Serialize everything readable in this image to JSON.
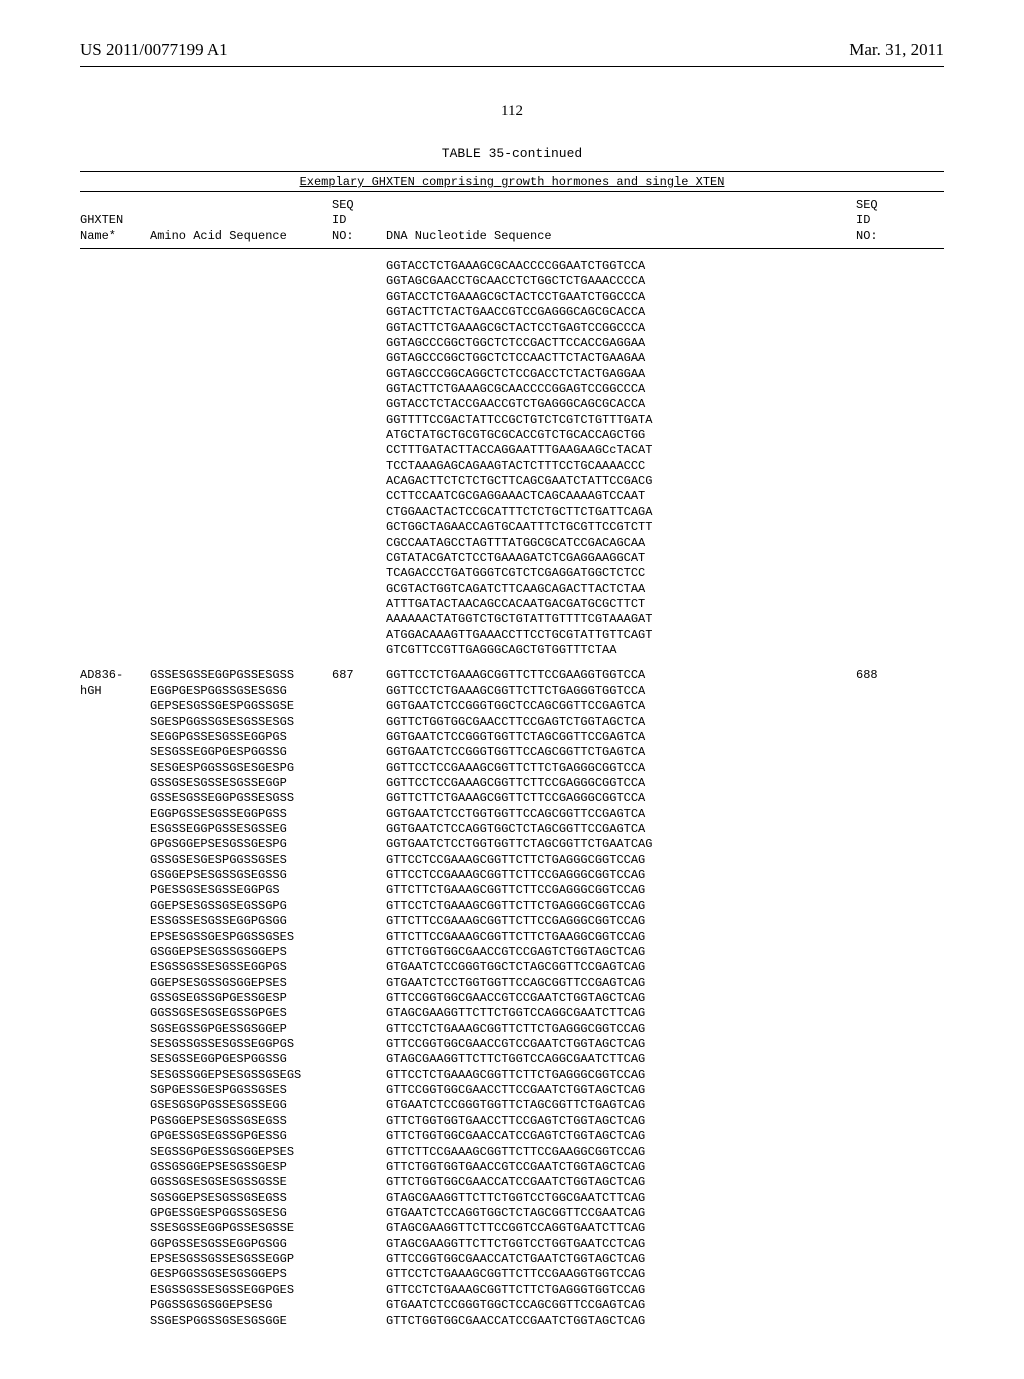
{
  "header": {
    "pub_number": "US 2011/0077199 A1",
    "pub_date": "Mar. 31, 2011"
  },
  "page_number": "112",
  "table": {
    "title": "TABLE 35-continued",
    "subtitle": "Exemplary GHXTEN comprising growth hormones and single XTEN",
    "columns": {
      "c1": "GHXTEN\nName*",
      "c2": "Amino Acid Sequence",
      "c3": "SEQ\nID\nNO:",
      "c4": "DNA Nucleotide Sequence",
      "c5": "SEQ\nID\nNO:"
    },
    "rows": [
      {
        "name": "",
        "aa": "",
        "seq_id_aa": "",
        "dna": "GGTACCTCTGAAAGCGCAACCCCGGAATCTGGTCCA\nGGTAGCGAACCTGCAACCTCTGGCTCTGAAACCCCA\nGGTACCTCTGAAAGCGCTACTCCTGAATCTGGCCCA\nGGTACTTCTACTGAACCGTCCGAGGGCAGCGCACCA\nGGTACTTCTGAAAGCGCTACTCCTGAGTCCGGCCCA\nGGTAGCCCGGCTGGCTCTCCGACTTCCACCGAGGAA\nGGTAGCCCGGCTGGCTCTCCAACTTCTACTGAAGAA\nGGTAGCCCGGCAGGCTCTCCGACCTCTACTGAGGAA\nGGTACTTCTGAAAGCGCAACCCCGGAGTCCGGCCCA\nGGTACCTCTACCGAACCGTCTGAGGGCAGCGCACCA\nGGTTTTCCGACTATTCCGCTGTCTCGTCTGTTTGATA\nATGCTATGCTGCGTGCGCACCGTCTGCACCAGCTGG\nCCTTTGATACTTACCAGGAATTTGAAGAAGCcTACAT\nTCCTAAAGAGCAGAAGTACTCTTTCCTGCAAAACCC\nACAGACTTCTCTCTGCTTCAGCGAATCTATTCCGACG\nCCTTCCAATCGCGAGGAAACTCAGCAAAAGTCCAAT\nCTGGAACTACTCCGCATTTCTCTGCTTCTGATTCAGA\nGCTGGCTAGAACCAGTGCAATTTCTGCGTTCCGTCTT\nCGCCAATAGCCTAGTTTATGGCGCATCCGACAGCAA\nCGTATACGATCTCCTGAAAGATCTCGAGGAAGGCAT\nTCAGACCCTGATGGGTCGTCTCGAGGATGGCTCTCC\nGCGTACTGGTCAGATCTTCAAGCAGACTTACTCTAA\nATTTGATACTAACAGCCACAATGACGATGCGCTTCT\nAAAAAACTATGGTCTGCTGTATTGTTTTCGTAAAGAT\nATGGACAAAGTTGAAACCTTCCTGCGTATTGTTCAGT\nGTCGTTCCGTTGAGGGCAGCTGTGGTTTCTAA",
        "seq_id_dna": ""
      },
      {
        "name": "AD836-\nhGH",
        "aa": "GSSESGSSEGGPGSSESGSS\nEGGPGESPGGSSGSESGSG\nGEPSESGSSGESPGGSSGSE\nSGESPGGSSGSESGSSESGS\nSEGGPGSSESGSSEGGPGS\nSESGSSEGGPGESPGGSSG\nSESGESPGGSSGSESGESPG\nGSSGSESGSSESGSSEGGP\nGSSESGSSEGGPGSSESGSS\nEGGPGSSESGSSEGGPGSS\nESGSSEGGPGSSESGSSEG\nGPGSGGEPSESGSSGESPG\nGSSGSESGESPGGSSGSES\nGSGGEPSESGSSGSEGSSG\nPGESSGSESGSSEGGPGS\nGGEPSESGSSGSEGSSGPG\nESSGSSESGSSEGGPGSGG\nEPSESGSSGESPGGSSGSES\nGSGGEPSESGSSGSGGEPS\nESGSSGSSESGSSEGGPGS\nGGEPSESGSSGSGGEPSES\nGSSGSEGSSGPGESSGESP\nGGSSGSESGSEGSSGPGES\nSGSEGSSGPGESSGSGGEP\nSESGSSGSSESGSSEGGPGS\nSESGSSEGGPGESPGGSSG\nSESGSSGGEPSESGSSGSEGS\nSGPGESSGESPGGSSGSES\nGSESGSGPGSSESGSSEGG\nPGSGGEPSESGSSGSEGSS\nGPGESSGSEGSSGPGESSG\nSEGSSGPGESSGSGGEPSES\nGSSGSGGEPSESGSSGESP\nGGSSGSESGSESGSSGSSE\nSGSGGEPSESGSSGSEGSS\nGPGESSGESPGGSSGSESG\nSSESGSSEGGPGSSESGSSE\nGGPGSSESGSSEGGPGSGG\nEPSESGSSGSSESGSSEGGP\nGESPGGSSGSESGSGGEPS\nESGSSGSSESGSSEGGPGES\nPGGSSGSGSGGEPSESG\nSSGESPGGSSGSESGSGGE",
        "seq_id_aa": "687",
        "dna": "GGTTCCTCTGAAAGCGGTTCTTCCGAAGGTGGTCCA\nGGTTCCTCTGAAAGCGGTTCTTCTGAGGGTGGTCCA\nGGTGAATCTCCGGGTGGCTCCAGCGGTTCCGAGTCA\nGGTTCTGGTGGCGAACCTTCCGAGTCTGGTAGCTCA\nGGTGAATCTCCGGGTGGTTCTAGCGGTTCCGAGTCA\nGGTGAATCTCCGGGTGGTTCCAGCGGTTCTGAGTCA\nGGTTCCTCCGAAAGCGGTTCTTCTGAGGGCGGTCCA\nGGTTCCTCCGAAAGCGGTTCTTCCGAGGGCGGTCCA\nGGTTCTTCTGAAAGCGGTTCTTCCGAGGGCGGTCCA\nGGTGAATCTCCTGGTGGTTCCAGCGGTTCCGAGTCA\nGGTGAATCTCCAGGTGGCTCTAGCGGTTCCGAGTCA\nGGTGAATCTCCTGGTGGTTCTAGCGGTTCTGAATCAG\nGTTCCTCCGAAAGCGGTTCTTCTGAGGGCGGTCCAG\nGTTCCTCCGAAAGCGGTTCTTCCGAGGGCGGTCCAG\nGTTCTTCTGAAAGCGGTTCTTCCGAGGGCGGTCCAG\nGTTCCTCTGAAAGCGGTTCTTCTGAGGGCGGTCCAG\nGTTCTTCCGAAAGCGGTTCTTCCGAGGGCGGTCCAG\nGTTCTTCCGAAAGCGGTTCTTCTGAAGGCGGTCCAG\nGTTCTGGTGGCGAACCGTCCGAGTCTGGTAGCTCAG\nGTGAATCTCCGGGTGGCTCTAGCGGTTCCGAGTCAG\nGTGAATCTCCTGGTGGTTCCAGCGGTTCCGAGTCAG\nGTTCCGGTGGCGAACCGTCCGAATCTGGTAGCTCAG\nGTAGCGAAGGTTCTTCTGGTCCAGGCGAATCTTCAG\nGTTCCTCTGAAAGCGGTTCTTCTGAGGGCGGTCCAG\nGTTCCGGTGGCGAACCGTCCGAATCTGGTAGCTCAG\nGTAGCGAAGGTTCTTCTGGTCCAGGCGAATCTTCAG\nGTTCCTCTGAAAGCGGTTCTTCTGAGGGCGGTCCAG\nGTTCCGGTGGCGAACCTTCCGAATCTGGTAGCTCAG\nGTGAATCTCCGGGTGGTTCTAGCGGTTCTGAGTCAG\nGTTCTGGTGGTGAACCTTCCGAGTCTGGTAGCTCAG\nGTTCTGGTGGCGAACCATCCGAGTCTGGTAGCTCAG\nGTTCTTCCGAAAGCGGTTCTTCCGAAGGCGGTCCAG\nGTTCTGGTGGTGAACCGTCCGAATCTGGTAGCTCAG\nGTTCTGGTGGCGAACCATCCGAATCTGGTAGCTCAG\nGTAGCGAAGGTTCTTCTGGTCCTGGCGAATCTTCAG\nGTGAATCTCCAGGTGGCTCTAGCGGTTCCGAATCAG\nGTAGCGAAGGTTCTTCCGGTCCAGGTGAATCTTCAG\nGTAGCGAAGGTTCTTCTGGTCCTGGTGAATCCTCAG\nGTTCCGGTGGCGAACCATCTGAATCTGGTAGCTCAG\nGTTCCTCTGAAAGCGGTTCTTCCGAAGGTGGTCCAG\nGTTCCTCTGAAAGCGGTTCTTCTGAGGGTGGTCCAG\nGTGAATCTCCGGGTGGCTCCAGCGGTTCCGAGTCAG\nGTTCTGGTGGCGAACCATCCGAATCTGGTAGCTCAG",
        "seq_id_dna": "688"
      }
    ]
  }
}
